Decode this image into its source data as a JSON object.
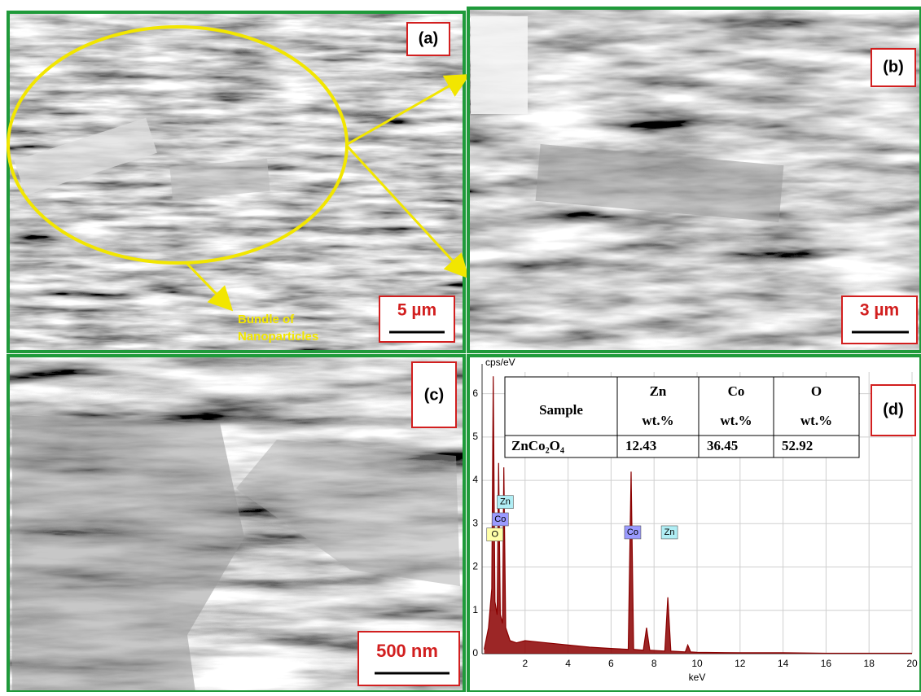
{
  "panels": {
    "a": {
      "label": "(a)",
      "scale": "5 µm",
      "annotation": [
        "Bundle of",
        "Nanoparticles"
      ]
    },
    "b": {
      "label": "(b)",
      "scale": "3 µm"
    },
    "c": {
      "label": "(c)",
      "scale": "500 nm"
    }
  },
  "chart_data": {
    "type": "line",
    "panel_label": "(d)",
    "y_label": "cps/eV",
    "x_label": "keV",
    "xlim": [
      0,
      20
    ],
    "ylim": [
      0,
      6.5
    ],
    "xticks": [
      2,
      4,
      6,
      8,
      10,
      12,
      14,
      16,
      18,
      20
    ],
    "yticks": [
      0,
      1,
      2,
      3,
      4,
      5,
      6
    ],
    "grid": true,
    "color": "#8b0000",
    "x": [
      0.1,
      0.3,
      0.45,
      0.52,
      0.6,
      0.7,
      0.77,
      0.85,
      0.95,
      1.01,
      1.1,
      1.3,
      1.6,
      2,
      3,
      4,
      5,
      6,
      6.8,
      6.93,
      7.05,
      7.5,
      7.65,
      7.8,
      8.5,
      8.64,
      8.78,
      9.45,
      9.57,
      9.7,
      10,
      12,
      14,
      16,
      18,
      20
    ],
    "values": [
      0.1,
      0.6,
      1.5,
      6.4,
      1.2,
      0.9,
      4.4,
      0.9,
      0.7,
      4.3,
      0.6,
      0.3,
      0.25,
      0.3,
      0.25,
      0.2,
      0.15,
      0.12,
      0.1,
      4.2,
      0.1,
      0.08,
      0.6,
      0.08,
      0.06,
      1.3,
      0.06,
      0.04,
      0.2,
      0.04,
      0.03,
      0.02,
      0.02,
      0.01,
      0.01,
      0.01
    ],
    "annotations": [
      {
        "text": "Zn",
        "x": 1.0,
        "y": 3.5,
        "color": "#b0eef5"
      },
      {
        "text": "Co",
        "x": 0.77,
        "y": 3.1,
        "color": "#9a9aff"
      },
      {
        "text": "O",
        "x": 0.52,
        "y": 2.75,
        "color": "#ffffa8"
      },
      {
        "text": "Co",
        "x": 6.93,
        "y": 2.8,
        "color": "#9a9aff"
      },
      {
        "text": "Zn",
        "x": 8.64,
        "y": 2.8,
        "color": "#b0eef5"
      }
    ],
    "table": {
      "sample_header": "Sample",
      "columns": [
        {
          "element": "Zn",
          "unit": "wt.%"
        },
        {
          "element": "Co",
          "unit": "wt.%"
        },
        {
          "element": "O",
          "unit": "wt.%"
        }
      ],
      "row": {
        "sample": "ZnCo₂O₄",
        "values": [
          12.43,
          36.45,
          52.92
        ]
      }
    }
  }
}
